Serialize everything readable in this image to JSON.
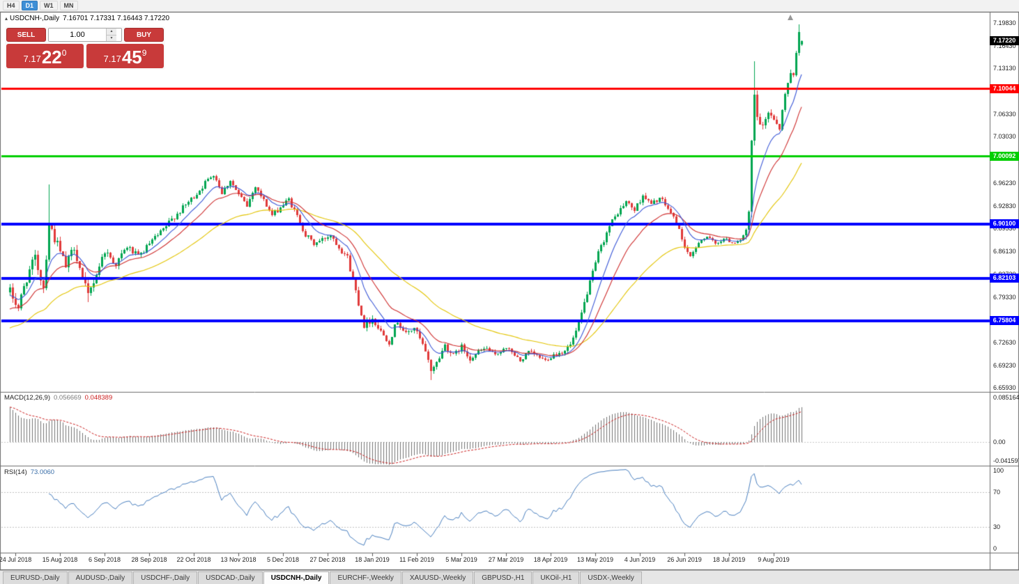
{
  "toolbar": {
    "timeframes": [
      {
        "label": "H4",
        "active": false
      },
      {
        "label": "D1",
        "active": true
      },
      {
        "label": "W1",
        "active": false
      },
      {
        "label": "MN",
        "active": false
      }
    ]
  },
  "chart_header": {
    "collapse_icon": "▴",
    "symbol_text": "USDCNH-,Daily",
    "ohlc_text": "7.16701 7.17331 7.16443 7.17220"
  },
  "icons": {
    "volume_up": "▴",
    "volume_down": "▾"
  },
  "trade_panel": {
    "sell_label": "SELL",
    "buy_label": "BUY",
    "volume": "1.00",
    "sell_price": {
      "base": "7.17",
      "pips": "22",
      "frac": "0"
    },
    "buy_price": {
      "base": "7.17",
      "pips": "45",
      "frac": "9"
    }
  },
  "chart_data": {
    "type": "candlestick",
    "symbol": "USDCNH-",
    "timeframe": "Daily",
    "current_price_label": "7.17220",
    "ohlc_current": {
      "open": 7.16701,
      "high": 7.17331,
      "low": 7.16443,
      "close": 7.1722
    },
    "y_range": [
      6.653,
      7.214
    ],
    "y_ticks": [
      "7.19830",
      "7.16430",
      "7.13130",
      "7.06330",
      "7.03030",
      "6.96230",
      "6.92830",
      "6.89530",
      "6.86130",
      "6.82730",
      "6.79330",
      "6.72630",
      "6.69230",
      "6.65930"
    ],
    "levels": [
      {
        "price": 7.10044,
        "label": "7.10044",
        "color": "#ff0000",
        "width": 3
      },
      {
        "price": 7.00092,
        "label": "7.00092",
        "color": "#00ce00",
        "width": 3
      },
      {
        "price": 6.901,
        "label": "6.90100",
        "color": "#0000ff",
        "width": 4
      },
      {
        "price": 6.82103,
        "label": "6.82103",
        "color": "#0000ff",
        "width": 4
      },
      {
        "price": 6.75804,
        "label": "6.75804",
        "color": "#0000ff",
        "width": 4
      }
    ],
    "x_ticks": [
      "24 Jul 2018",
      "15 Aug 2018",
      "6 Sep 2018",
      "28 Sep 2018",
      "22 Oct 2018",
      "13 Nov 2018",
      "5 Dec 2018",
      "27 Dec 2018",
      "18 Jan 2019",
      "11 Feb 2019",
      "5 Mar 2019",
      "27 Mar 2019",
      "18 Apr 2019",
      "13 May 2019",
      "4 Jun 2019",
      "26 Jun 2019",
      "18 Jul 2019",
      "9 Aug 2019"
    ],
    "first_tick_index": 2,
    "tick_step": 16,
    "candle_count": 285,
    "price_path": [
      [
        0,
        6.8
      ],
      [
        3,
        6.778
      ],
      [
        6,
        6.822
      ],
      [
        9,
        6.85
      ],
      [
        12,
        6.808
      ],
      [
        14,
        6.902
      ],
      [
        17,
        6.87
      ],
      [
        20,
        6.838
      ],
      [
        23,
        6.868
      ],
      [
        26,
        6.82
      ],
      [
        28,
        6.795
      ],
      [
        31,
        6.828
      ],
      [
        34,
        6.862
      ],
      [
        38,
        6.842
      ],
      [
        42,
        6.868
      ],
      [
        46,
        6.852
      ],
      [
        50,
        6.872
      ],
      [
        54,
        6.888
      ],
      [
        58,
        6.908
      ],
      [
        62,
        6.925
      ],
      [
        66,
        6.942
      ],
      [
        70,
        6.962
      ],
      [
        73,
        6.976
      ],
      [
        76,
        6.948
      ],
      [
        79,
        6.966
      ],
      [
        82,
        6.944
      ],
      [
        85,
        6.928
      ],
      [
        88,
        6.958
      ],
      [
        91,
        6.936
      ],
      [
        94,
        6.914
      ],
      [
        97,
        6.926
      ],
      [
        100,
        6.938
      ],
      [
        103,
        6.912
      ],
      [
        106,
        6.885
      ],
      [
        109,
        6.872
      ],
      [
        112,
        6.878
      ],
      [
        115,
        6.886
      ],
      [
        118,
        6.868
      ],
      [
        121,
        6.852
      ],
      [
        124,
        6.802
      ],
      [
        127,
        6.752
      ],
      [
        130,
        6.762
      ],
      [
        133,
        6.742
      ],
      [
        136,
        6.728
      ],
      [
        139,
        6.758
      ],
      [
        142,
        6.738
      ],
      [
        145,
        6.748
      ],
      [
        148,
        6.722
      ],
      [
        151,
        6.686
      ],
      [
        153,
        6.696
      ],
      [
        156,
        6.722
      ],
      [
        159,
        6.706
      ],
      [
        162,
        6.72
      ],
      [
        165,
        6.702
      ],
      [
        168,
        6.712
      ],
      [
        171,
        6.718
      ],
      [
        174,
        6.706
      ],
      [
        177,
        6.718
      ],
      [
        180,
        6.712
      ],
      [
        183,
        6.698
      ],
      [
        186,
        6.712
      ],
      [
        189,
        6.706
      ],
      [
        192,
        6.7
      ],
      [
        195,
        6.708
      ],
      [
        198,
        6.712
      ],
      [
        201,
        6.722
      ],
      [
        204,
        6.752
      ],
      [
        207,
        6.8
      ],
      [
        209,
        6.828
      ],
      [
        211,
        6.858
      ],
      [
        213,
        6.878
      ],
      [
        215,
        6.898
      ],
      [
        218,
        6.918
      ],
      [
        221,
        6.934
      ],
      [
        224,
        6.922
      ],
      [
        227,
        6.944
      ],
      [
        230,
        6.93
      ],
      [
        233,
        6.94
      ],
      [
        236,
        6.924
      ],
      [
        239,
        6.904
      ],
      [
        242,
        6.868
      ],
      [
        244,
        6.85
      ],
      [
        247,
        6.876
      ],
      [
        250,
        6.882
      ],
      [
        253,
        6.872
      ],
      [
        256,
        6.88
      ],
      [
        259,
        6.874
      ],
      [
        262,
        6.878
      ],
      [
        264,
        6.888
      ],
      [
        265,
        6.915
      ],
      [
        266,
        7.02
      ],
      [
        267,
        7.09
      ],
      [
        268,
        7.058
      ],
      [
        270,
        7.042
      ],
      [
        272,
        7.068
      ],
      [
        274,
        7.058
      ],
      [
        276,
        7.044
      ],
      [
        278,
        7.092
      ],
      [
        280,
        7.128
      ],
      [
        281,
        7.118
      ],
      [
        282,
        7.158
      ],
      [
        283,
        7.188
      ],
      [
        284,
        7.172
      ]
    ],
    "volatility_path": [
      [
        0,
        2.0
      ],
      [
        18,
        1.8
      ],
      [
        30,
        1.4
      ],
      [
        50,
        1.0
      ],
      [
        80,
        0.9
      ],
      [
        110,
        0.9
      ],
      [
        125,
        1.2
      ],
      [
        150,
        1.1
      ],
      [
        165,
        0.8
      ],
      [
        190,
        0.65
      ],
      [
        205,
        1.0
      ],
      [
        225,
        0.9
      ],
      [
        245,
        0.8
      ],
      [
        258,
        0.5
      ],
      [
        263,
        0.9
      ],
      [
        266,
        1.8
      ],
      [
        272,
        1.2
      ],
      [
        284,
        1.0
      ]
    ],
    "special_wicks": [
      {
        "i": 14,
        "h": 6.96
      },
      {
        "i": 28,
        "l": 6.786
      },
      {
        "i": 151,
        "l": 6.671
      },
      {
        "i": 267,
        "h": 7.142
      },
      {
        "i": 283,
        "h": 7.1965
      }
    ],
    "moving_averages": [
      {
        "period": 50,
        "color": "#e3c400",
        "init_offset": -0.06
      },
      {
        "period": 20,
        "color": "#cf2e2e",
        "init_offset": -0.032
      },
      {
        "period": 10,
        "color": "#3a57d7",
        "init_offset": -0.012
      }
    ],
    "colors": {
      "up": "#00a550",
      "down": "#e03a3a",
      "macd_hist": "#737373",
      "macd_signal": "#cc2020",
      "rsi_line": "#4a80c0"
    },
    "indicators": {
      "macd": {
        "name": "MACD(12,26,9)",
        "value_main": "0.056669",
        "value_signal": "0.048389",
        "axis": [
          "0.085164",
          "0.00",
          "-0.041597"
        ],
        "range": [
          -0.041597,
          0.085164
        ],
        "fast": 12,
        "slow": 26,
        "signal": 9,
        "init_offset_fast": -0.012,
        "init_offset_slow": -0.072
      },
      "rsi": {
        "name": "RSI(14)",
        "value": "73.0060",
        "period": 14,
        "axis": [
          "100",
          "70",
          "30",
          "0"
        ],
        "level_lines": [
          70,
          30
        ]
      }
    },
    "marker": {
      "type": "up-arrow",
      "index": 280,
      "color": "#979797"
    }
  },
  "tabs": [
    {
      "label": "EURUSD-,Daily",
      "active": false
    },
    {
      "label": "AUDUSD-,Daily",
      "active": false
    },
    {
      "label": "USDCHF-,Daily",
      "active": false
    },
    {
      "label": "USDCAD-,Daily",
      "active": false
    },
    {
      "label": "USDCNH-,Daily",
      "active": true
    },
    {
      "label": "EURCHF-,Weekly",
      "active": false
    },
    {
      "label": "XAUUSD-,Weekly",
      "active": false
    },
    {
      "label": "GBPUSD-,H1",
      "active": false
    },
    {
      "label": "UKOil-,H1",
      "active": false
    },
    {
      "label": "USDX-,Weekly",
      "active": false
    }
  ]
}
